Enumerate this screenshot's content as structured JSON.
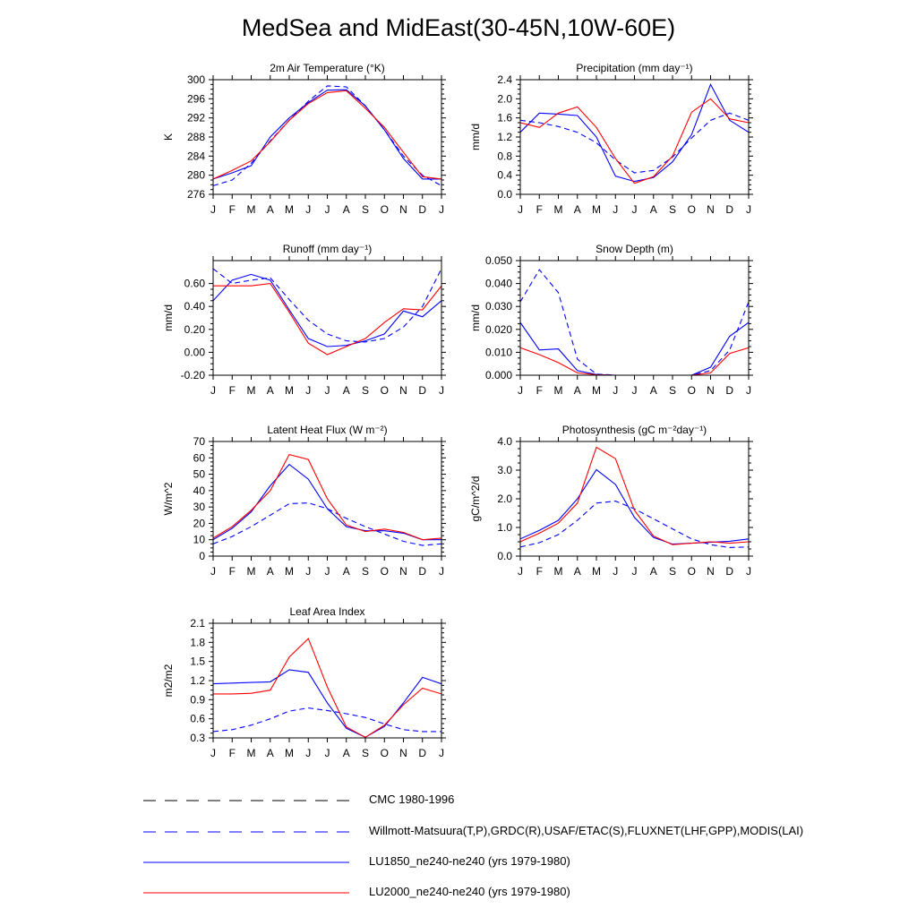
{
  "title": "MedSea and MidEast(30-45N,10W-60E)",
  "colors": {
    "model_1850": "#0000ff",
    "model_2000": "#ff0000",
    "cmc": "#000000",
    "obs": "#0000ff"
  },
  "legend": [
    {
      "label": "CMC 1980-1996",
      "color": "#000000",
      "dashed": true
    },
    {
      "label": "Willmott-Matsuura(T,P),GRDC(R),USAF/ETAC(S),FLUXNET(LHF,GPP),MODIS(LAI)",
      "color": "#0000ff",
      "dashed": true
    },
    {
      "label": "LU1850_ne240-ne240 (yrs 1979-1980)",
      "color": "#0000ff",
      "dashed": false
    },
    {
      "label": "LU2000_ne240-ne240 (yrs 1979-1980)",
      "color": "#ff0000",
      "dashed": false
    }
  ],
  "chart_data": [
    {
      "type": "line",
      "title": "2m Air Temperature (°K)",
      "ylabel": "K",
      "x": [
        "J",
        "F",
        "M",
        "A",
        "M",
        "J",
        "J",
        "A",
        "S",
        "O",
        "N",
        "D",
        "J"
      ],
      "ylim": [
        276,
        300
      ],
      "yticks": [
        276,
        280,
        284,
        288,
        292,
        296,
        300
      ],
      "ytick_labels": [
        "276",
        "280",
        "284",
        "288",
        "292",
        "296",
        "300"
      ],
      "series": [
        {
          "style": "obs",
          "values": [
            277.8,
            279.0,
            282.5,
            287.2,
            291.5,
            295.5,
            298.7,
            298.5,
            294.5,
            289.5,
            284.0,
            280.0,
            277.8
          ]
        },
        {
          "style": "m1850",
          "values": [
            279.2,
            280.5,
            282.0,
            288.0,
            292.0,
            295.2,
            297.8,
            297.9,
            294.5,
            289.5,
            283.5,
            279.2,
            279.2
          ]
        },
        {
          "style": "m2000",
          "values": [
            279.2,
            281.0,
            283.0,
            287.0,
            291.5,
            295.0,
            297.3,
            297.7,
            294.0,
            290.0,
            284.8,
            279.7,
            279.2
          ]
        }
      ]
    },
    {
      "type": "line",
      "title": "Precipitation (mm day⁻¹)",
      "ylabel": "mm/d",
      "x": [
        "J",
        "F",
        "M",
        "A",
        "M",
        "J",
        "J",
        "A",
        "S",
        "O",
        "N",
        "D",
        "J"
      ],
      "ylim": [
        0,
        2.4
      ],
      "yticks": [
        0,
        0.4,
        0.8,
        1.2,
        1.6,
        2.0,
        2.4
      ],
      "ytick_labels": [
        "0.0",
        "0.4",
        "0.8",
        "1.2",
        "1.6",
        "2.0",
        "2.4"
      ],
      "series": [
        {
          "style": "obs",
          "values": [
            1.55,
            1.5,
            1.42,
            1.3,
            1.08,
            0.72,
            0.45,
            0.5,
            0.78,
            1.18,
            1.55,
            1.7,
            1.55
          ]
        },
        {
          "style": "m1850",
          "values": [
            1.3,
            1.7,
            1.68,
            1.65,
            1.2,
            0.38,
            0.27,
            0.35,
            0.68,
            1.25,
            2.3,
            1.55,
            1.3
          ]
        },
        {
          "style": "m2000",
          "values": [
            1.5,
            1.4,
            1.7,
            1.83,
            1.4,
            0.75,
            0.23,
            0.37,
            0.8,
            1.72,
            2.0,
            1.58,
            1.5
          ]
        }
      ]
    },
    {
      "type": "line",
      "title": "Runoff (mm day⁻¹)",
      "ylabel": "mm/d",
      "x": [
        "J",
        "F",
        "M",
        "A",
        "M",
        "J",
        "J",
        "A",
        "S",
        "O",
        "N",
        "D",
        "J"
      ],
      "ylim": [
        -0.2,
        0.8
      ],
      "yticks": [
        -0.2,
        0,
        0.2,
        0.4,
        0.6
      ],
      "ytick_labels": [
        "-0.20",
        "0.00",
        "0.20",
        "0.40",
        "0.60"
      ],
      "series": [
        {
          "style": "obs",
          "values": [
            0.73,
            0.6,
            0.63,
            0.65,
            0.46,
            0.28,
            0.16,
            0.1,
            0.09,
            0.12,
            0.22,
            0.4,
            0.73
          ]
        },
        {
          "style": "m1850",
          "values": [
            0.45,
            0.63,
            0.68,
            0.63,
            0.37,
            0.12,
            0.05,
            0.06,
            0.1,
            0.16,
            0.36,
            0.31,
            0.45
          ]
        },
        {
          "style": "m2000",
          "values": [
            0.58,
            0.58,
            0.58,
            0.6,
            0.35,
            0.08,
            -0.02,
            0.05,
            0.12,
            0.26,
            0.38,
            0.37,
            0.58
          ]
        }
      ]
    },
    {
      "type": "line",
      "title": "Snow Depth (m)",
      "ylabel": "mm/d",
      "x": [
        "J",
        "F",
        "M",
        "A",
        "M",
        "J",
        "J",
        "A",
        "S",
        "O",
        "N",
        "D",
        "J"
      ],
      "ylim": [
        0,
        0.05
      ],
      "yticks": [
        0,
        0.01,
        0.02,
        0.03,
        0.04,
        0.05
      ],
      "ytick_labels": [
        "0.000",
        "0.010",
        "0.020",
        "0.030",
        "0.040",
        "0.050"
      ],
      "series": [
        {
          "style": "cmc",
          "values": [
            0,
            0,
            0,
            0,
            0,
            0,
            0,
            0,
            0,
            0,
            0,
            0,
            0
          ]
        },
        {
          "style": "obs",
          "values": [
            0.032,
            0.046,
            0.036,
            0.007,
            0.0005,
            0,
            0,
            0,
            0,
            0,
            0.002,
            0.011,
            0.032
          ]
        },
        {
          "style": "m1850",
          "values": [
            0.023,
            0.011,
            0.0115,
            0.002,
            0.0003,
            0,
            0,
            0,
            0,
            0,
            0.0035,
            0.017,
            0.023
          ]
        },
        {
          "style": "m2000",
          "values": [
            0.012,
            0.009,
            0.0055,
            0.001,
            0.0002,
            0,
            0,
            0,
            0,
            0,
            0.001,
            0.0095,
            0.012
          ]
        }
      ]
    },
    {
      "type": "line",
      "title": "Latent Heat Flux (W m⁻²)",
      "ylabel": "W/m^2",
      "x": [
        "J",
        "F",
        "M",
        "A",
        "M",
        "J",
        "J",
        "A",
        "S",
        "O",
        "N",
        "D",
        "J"
      ],
      "ylim": [
        0,
        70
      ],
      "yticks": [
        0,
        10,
        20,
        30,
        40,
        50,
        60,
        70
      ],
      "ytick_labels": [
        "0",
        "10",
        "20",
        "30",
        "40",
        "50",
        "60",
        "70"
      ],
      "series": [
        {
          "style": "obs",
          "values": [
            7.5,
            12.0,
            18.0,
            25.0,
            32.0,
            32.5,
            29.0,
            23.0,
            18.0,
            13.5,
            9.0,
            6.5,
            7.5
          ]
        },
        {
          "style": "m1850",
          "values": [
            10.0,
            17.0,
            27.0,
            43.0,
            56.0,
            47.0,
            29.0,
            18.0,
            15.5,
            15.5,
            14.0,
            10.0,
            10.0
          ]
        },
        {
          "style": "m2000",
          "values": [
            11.0,
            18.0,
            28.0,
            40.0,
            62.0,
            59.0,
            35.0,
            19.0,
            15.0,
            16.5,
            14.5,
            10.0,
            11.0
          ]
        }
      ]
    },
    {
      "type": "line",
      "title": "Photosynthesis (gC m⁻²day⁻¹)",
      "ylabel": "gC/m^2/d",
      "x": [
        "J",
        "F",
        "M",
        "A",
        "M",
        "J",
        "J",
        "A",
        "S",
        "O",
        "N",
        "D",
        "J"
      ],
      "ylim": [
        0,
        4
      ],
      "yticks": [
        0,
        1,
        2,
        3,
        4
      ],
      "ytick_labels": [
        "0.0",
        "1.0",
        "2.0",
        "3.0",
        "4.0"
      ],
      "series": [
        {
          "style": "obs",
          "values": [
            0.32,
            0.47,
            0.75,
            1.25,
            1.85,
            1.92,
            1.65,
            1.3,
            0.95,
            0.6,
            0.4,
            0.3,
            0.32
          ]
        },
        {
          "style": "m1850",
          "values": [
            0.6,
            0.9,
            1.25,
            2.0,
            3.02,
            2.5,
            1.35,
            0.65,
            0.42,
            0.45,
            0.48,
            0.52,
            0.6
          ]
        },
        {
          "style": "m2000",
          "values": [
            0.5,
            0.8,
            1.15,
            1.85,
            3.8,
            3.4,
            1.6,
            0.7,
            0.4,
            0.45,
            0.5,
            0.45,
            0.5
          ]
        }
      ]
    },
    {
      "type": "line",
      "title": "Leaf Area Index",
      "ylabel": "m2/m2",
      "x": [
        "J",
        "F",
        "M",
        "A",
        "M",
        "J",
        "J",
        "A",
        "S",
        "O",
        "N",
        "D",
        "J"
      ],
      "ylim": [
        0.3,
        2.1
      ],
      "yticks": [
        0.3,
        0.6,
        0.9,
        1.2,
        1.5,
        1.8,
        2.1
      ],
      "ytick_labels": [
        "0.3",
        "0.6",
        "0.9",
        "1.2",
        "1.5",
        "1.8",
        "2.1"
      ],
      "series": [
        {
          "style": "obs",
          "values": [
            0.4,
            0.43,
            0.5,
            0.6,
            0.72,
            0.77,
            0.73,
            0.68,
            0.62,
            0.52,
            0.43,
            0.4,
            0.4
          ]
        },
        {
          "style": "m1850",
          "values": [
            1.15,
            1.16,
            1.17,
            1.18,
            1.37,
            1.33,
            0.85,
            0.45,
            0.31,
            0.48,
            0.85,
            1.25,
            1.15
          ]
        },
        {
          "style": "m2000",
          "values": [
            0.99,
            0.99,
            1.0,
            1.05,
            1.57,
            1.86,
            1.1,
            0.47,
            0.31,
            0.5,
            0.82,
            1.08,
            0.99
          ]
        }
      ]
    }
  ]
}
